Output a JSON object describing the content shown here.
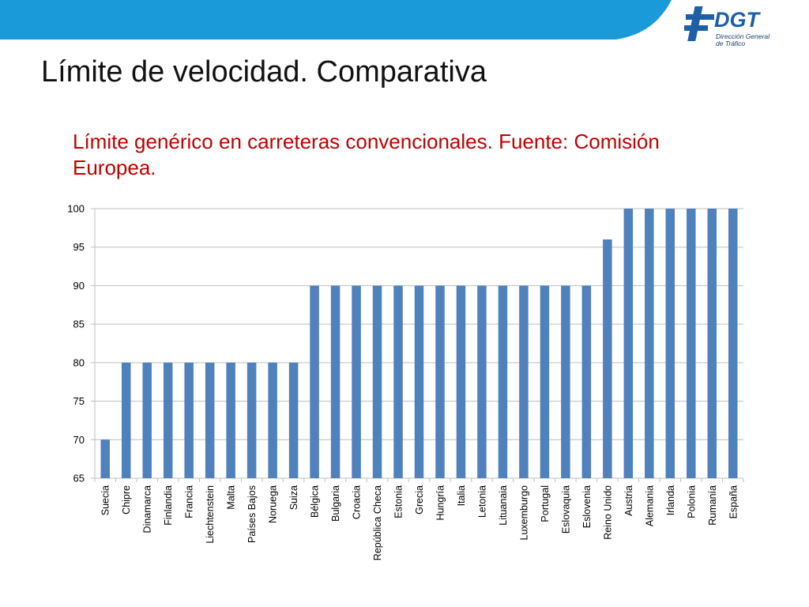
{
  "header": {
    "logo": {
      "brand": "DGT",
      "subtitle": "Dirección General\nde Tráfico",
      "icon": "dgt-logo-icon"
    }
  },
  "slide": {
    "title": "Límite de velocidad. Comparativa",
    "subtitle": "Límite genérico en carreteras convencionales. Fuente: Comisión Europea."
  },
  "colors": {
    "banner": "#1a9ad8",
    "bar": "#4f81bd",
    "subtitle": "#c00000",
    "grid": "#bfbfbf",
    "logo_blue": "#1f5fa8"
  },
  "chart_data": {
    "type": "bar",
    "title": "",
    "xlabel": "",
    "ylabel": "",
    "ylim": [
      65,
      100
    ],
    "yticks": [
      65,
      70,
      75,
      80,
      85,
      90,
      95,
      100
    ],
    "grid": true,
    "legend": "none",
    "categories": [
      "Suecia",
      "Chipre",
      "Dinamarca",
      "Finlandia",
      "Francia",
      "Liechtenstein",
      "Malta",
      "Países Bajos",
      "Noruega",
      "Suiza",
      "Bélgica",
      "Bulgaria",
      "Croacia",
      "República Checa",
      "Estonia",
      "Grecia",
      "Hungría",
      "Italia",
      "Letonia",
      "Lituanaia",
      "Luxemburgo",
      "Portugal",
      "Eslovaquia",
      "Eslovenia",
      "Reino Unido",
      "Austria",
      "Alemania",
      "Irlanda",
      "Polonia",
      "Rumanía",
      "España"
    ],
    "values": [
      70,
      80,
      80,
      80,
      80,
      80,
      80,
      80,
      80,
      80,
      90,
      90,
      90,
      90,
      90,
      90,
      90,
      90,
      90,
      90,
      90,
      90,
      90,
      90,
      96,
      100,
      100,
      100,
      100,
      100,
      100
    ]
  }
}
